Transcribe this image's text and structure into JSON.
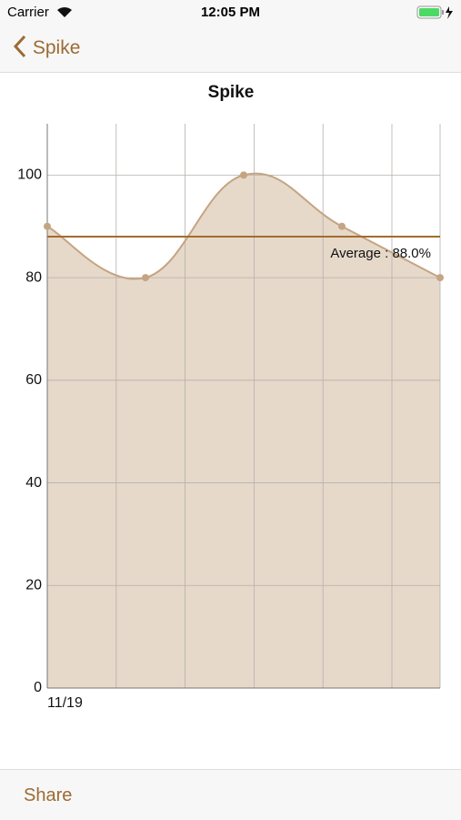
{
  "status_bar": {
    "carrier": "Carrier",
    "time": "12:05 PM"
  },
  "nav": {
    "back": "Spike"
  },
  "chart_data": {
    "type": "area",
    "title": "Spike",
    "categories": [
      "11/19",
      null,
      null,
      null,
      null
    ],
    "values": [
      90,
      80,
      100,
      90,
      80
    ],
    "color": "#c4a482",
    "fill": "#e6d9ca",
    "ylim": [
      0,
      110
    ],
    "yticks": [
      0,
      20,
      40,
      60,
      80,
      100
    ],
    "grid": true,
    "average": {
      "value": 88,
      "label": "Average : 88.0%",
      "color": "#a36b30"
    }
  },
  "toolbar": {
    "share": "Share"
  }
}
